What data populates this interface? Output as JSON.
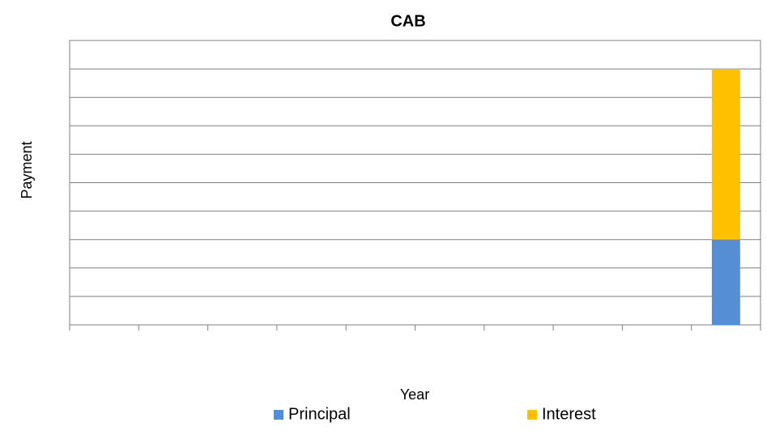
{
  "chart_data": {
    "type": "stacked_bar",
    "title": "CAB",
    "x_label": "Year",
    "y_label": "Payment",
    "categories": [
      null,
      null,
      null,
      null,
      null,
      null,
      null,
      null,
      null,
      null
    ],
    "series": [
      {
        "name": "Principal",
        "color": "#558ed5",
        "values": [
          0,
          0,
          0,
          0,
          0,
          0,
          0,
          0,
          0,
          3
        ]
      },
      {
        "name": "Interest",
        "color": "#ffc000",
        "values": [
          0,
          0,
          0,
          0,
          0,
          0,
          0,
          0,
          0,
          6
        ]
      }
    ],
    "ylim": [
      0,
      10
    ],
    "yticks": [
      0,
      1,
      2,
      3,
      4,
      5,
      6,
      7,
      8,
      9,
      10
    ],
    "grid": true,
    "legend": "bottom"
  }
}
